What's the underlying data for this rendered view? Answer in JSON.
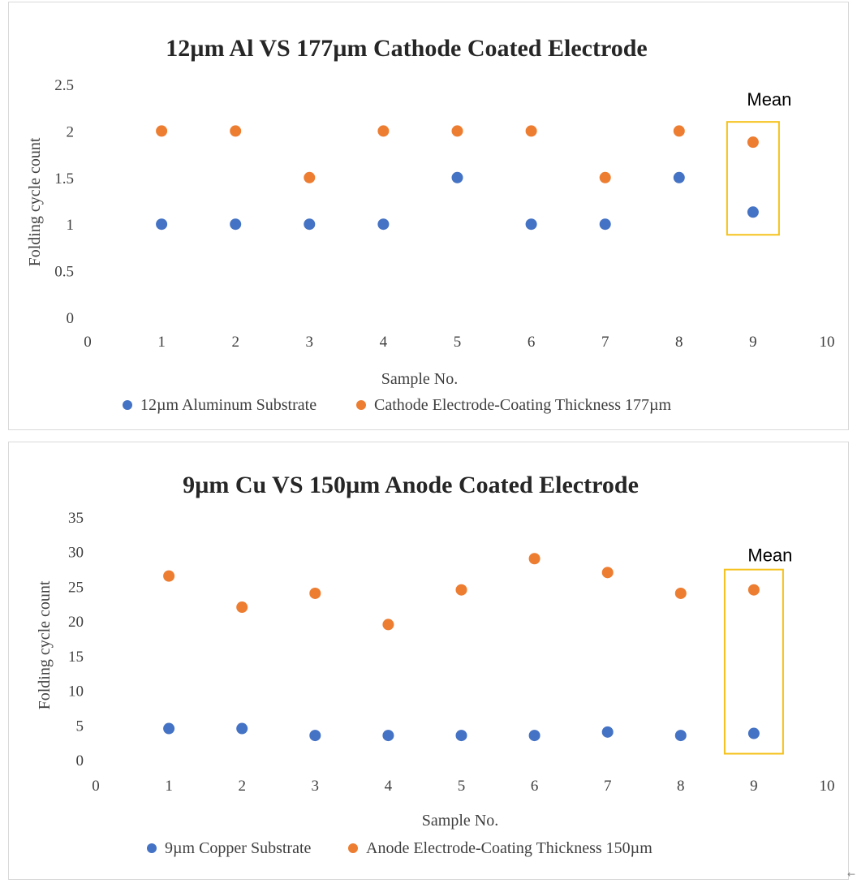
{
  "chart_data": [
    {
      "type": "scatter",
      "title": "12µm Al  VS 177µm Cathode Coated Electrode",
      "xlabel": "Sample No.",
      "ylabel": "Folding cycle count",
      "xlim": [
        0,
        10
      ],
      "ylim": [
        0,
        2.5
      ],
      "x_ticks": [
        "0",
        "1",
        "2",
        "3",
        "4",
        "5",
        "6",
        "7",
        "8",
        "9",
        "10"
      ],
      "y_ticks": [
        "0",
        "0.5",
        "1",
        "1.5",
        "2",
        "2.5"
      ],
      "grid": false,
      "legend_position": "bottom",
      "annotation": "Mean",
      "mean_sample": 9,
      "series": [
        {
          "name": "12µm Aluminum Substrate",
          "color": "#4472c4",
          "points": [
            [
              1,
              1
            ],
            [
              2,
              1
            ],
            [
              3,
              1
            ],
            [
              4,
              1
            ],
            [
              5,
              1.5
            ],
            [
              6,
              1
            ],
            [
              7,
              1
            ],
            [
              8,
              1.5
            ],
            [
              9,
              1.13
            ]
          ]
        },
        {
          "name": "Cathode Electrode-Coating Thickness 177µm",
          "color": "#ed7d31",
          "points": [
            [
              1,
              2
            ],
            [
              2,
              2
            ],
            [
              3,
              1.5
            ],
            [
              4,
              2
            ],
            [
              5,
              2
            ],
            [
              6,
              2
            ],
            [
              7,
              1.5
            ],
            [
              8,
              2
            ],
            [
              9,
              1.88
            ]
          ]
        }
      ]
    },
    {
      "type": "scatter",
      "title": "9µm Cu VS 150µm Anode Coated Electrode",
      "xlabel": "Sample No.",
      "ylabel": "Folding cycle count",
      "xlim": [
        0,
        10
      ],
      "ylim": [
        0,
        35
      ],
      "x_ticks": [
        "0",
        "1",
        "2",
        "3",
        "4",
        "5",
        "6",
        "7",
        "8",
        "9",
        "10"
      ],
      "y_ticks": [
        "0",
        "5",
        "10",
        "15",
        "20",
        "25",
        "30",
        "35"
      ],
      "grid": false,
      "legend_position": "bottom",
      "annotation": "Mean",
      "mean_sample": 9,
      "series": [
        {
          "name": "9µm Copper Substrate",
          "color": "#4472c4",
          "points": [
            [
              1,
              4.5
            ],
            [
              2,
              4.5
            ],
            [
              3,
              3.5
            ],
            [
              4,
              3.5
            ],
            [
              5,
              3.5
            ],
            [
              6,
              3.5
            ],
            [
              7,
              4
            ],
            [
              8,
              3.5
            ],
            [
              9,
              3.8
            ]
          ]
        },
        {
          "name": "Anode Electrode-Coating Thickness 150µm",
          "color": "#ed7d31",
          "points": [
            [
              1,
              26.5
            ],
            [
              2,
              22
            ],
            [
              3,
              24
            ],
            [
              4,
              19.5
            ],
            [
              5,
              24.5
            ],
            [
              6,
              29
            ],
            [
              7,
              27
            ],
            [
              8,
              24
            ],
            [
              9,
              24.5
            ]
          ]
        }
      ]
    }
  ]
}
